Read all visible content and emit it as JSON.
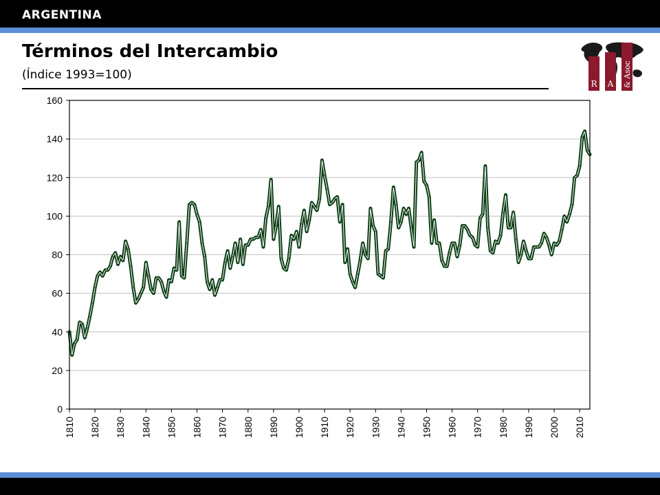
{
  "header": {
    "country": "ARGENTINA"
  },
  "title": "Términos del Intercambio",
  "subtitle": "(Índice 1993=100)",
  "logo": {
    "letters": [
      "R",
      "A",
      "& Asoc"
    ]
  },
  "colors": {
    "line": "#0b3d14",
    "accent_bar": "#5b8dd8",
    "bar": "#000000",
    "logo": "#8b1a2e"
  },
  "chart_data": {
    "type": "line",
    "title": "",
    "xlabel": "",
    "ylabel": "",
    "xlim": [
      1810,
      2014
    ],
    "ylim": [
      0,
      160
    ],
    "yticks": [
      0,
      20,
      40,
      60,
      80,
      100,
      120,
      140,
      160
    ],
    "xticks": [
      1810,
      1820,
      1830,
      1840,
      1850,
      1860,
      1870,
      1880,
      1890,
      1900,
      1910,
      1920,
      1930,
      1940,
      1950,
      1960,
      1970,
      1980,
      1990,
      2000,
      2010
    ],
    "grid": "horizontal",
    "series": [
      {
        "x": [
          1810,
          1811,
          1812,
          1813,
          1814,
          1815,
          1816,
          1817,
          1818,
          1819,
          1820,
          1821,
          1822,
          1823,
          1824,
          1825,
          1826,
          1827,
          1828,
          1829,
          1830,
          1831,
          1832,
          1833,
          1834,
          1835,
          1836,
          1837,
          1838,
          1839,
          1840,
          1841,
          1842,
          1843,
          1844,
          1845,
          1846,
          1847,
          1848,
          1849,
          1850,
          1851,
          1852,
          1853,
          1854,
          1855,
          1856,
          1857,
          1858,
          1859,
          1860,
          1861,
          1862,
          1863,
          1864,
          1865,
          1866,
          1867,
          1868,
          1869,
          1870,
          1871,
          1872,
          1873,
          1874,
          1875,
          1876,
          1877,
          1878,
          1879,
          1880,
          1881,
          1882,
          1883,
          1884,
          1885,
          1886,
          1887,
          1888,
          1889,
          1890,
          1891,
          1892,
          1893,
          1894,
          1895,
          1896,
          1897,
          1898,
          1899,
          1900,
          1901,
          1902,
          1903,
          1904,
          1905,
          1906,
          1907,
          1908,
          1909,
          1910,
          1911,
          1912,
          1913,
          1914,
          1915,
          1916,
          1917,
          1918,
          1919,
          1920,
          1921,
          1922,
          1923,
          1924,
          1925,
          1926,
          1927,
          1928,
          1929,
          1930,
          1931,
          1932,
          1933,
          1934,
          1935,
          1936,
          1937,
          1938,
          1939,
          1940,
          1941,
          1942,
          1943,
          1944,
          1945,
          1946,
          1947,
          1948,
          1949,
          1950,
          1951,
          1952,
          1953,
          1954,
          1955,
          1956,
          1957,
          1958,
          1959,
          1960,
          1961,
          1962,
          1963,
          1964,
          1965,
          1966,
          1967,
          1968,
          1969,
          1970,
          1971,
          1972,
          1973,
          1974,
          1975,
          1976,
          1977,
          1978,
          1979,
          1980,
          1981,
          1982,
          1983,
          1984,
          1985,
          1986,
          1987,
          1988,
          1989,
          1990,
          1991,
          1992,
          1993,
          1994,
          1995,
          1996,
          1997,
          1998,
          1999,
          2000,
          2001,
          2002,
          2003,
          2004,
          2005,
          2006,
          2007,
          2008,
          2009,
          2010,
          2011,
          2012,
          2013,
          2014
        ],
        "values": [
          40,
          28,
          34,
          36,
          45,
          44,
          37,
          42,
          48,
          55,
          63,
          69,
          71,
          69,
          72,
          72,
          74,
          79,
          81,
          75,
          79,
          77,
          87,
          83,
          74,
          63,
          55,
          57,
          60,
          63,
          76,
          69,
          62,
          60,
          68,
          68,
          66,
          61,
          58,
          67,
          66,
          73,
          72,
          97,
          69,
          68,
          86,
          106,
          107,
          106,
          101,
          97,
          86,
          79,
          66,
          62,
          67,
          59,
          63,
          67,
          67,
          76,
          82,
          73,
          79,
          86,
          76,
          88,
          75,
          85,
          85,
          88,
          88,
          89,
          89,
          93,
          84,
          99,
          105,
          119,
          88,
          95,
          105,
          78,
          73,
          72,
          78,
          90,
          88,
          92,
          84,
          96,
          103,
          92,
          98,
          107,
          105,
          103,
          109,
          129,
          121,
          114,
          106,
          107,
          109,
          110,
          97,
          106,
          76,
          83,
          70,
          66,
          63,
          70,
          77,
          86,
          80,
          78,
          104,
          95,
          92,
          70,
          69,
          68,
          82,
          83,
          97,
          115,
          106,
          94,
          97,
          104,
          101,
          104,
          94,
          84,
          128,
          129,
          133,
          118,
          116,
          110,
          86,
          98,
          86,
          86,
          77,
          74,
          74,
          81,
          86,
          86,
          79,
          85,
          95,
          95,
          93,
          90,
          89,
          85,
          84,
          99,
          101,
          126,
          94,
          82,
          81,
          87,
          86,
          90,
          102,
          111,
          94,
          94,
          102,
          88,
          76,
          80,
          87,
          82,
          78,
          78,
          84,
          84,
          84,
          86,
          91,
          89,
          85,
          80,
          86,
          85,
          87,
          93,
          100,
          97,
          101,
          106,
          120,
          121,
          126,
          141,
          144,
          134,
          132
        ]
      }
    ]
  }
}
